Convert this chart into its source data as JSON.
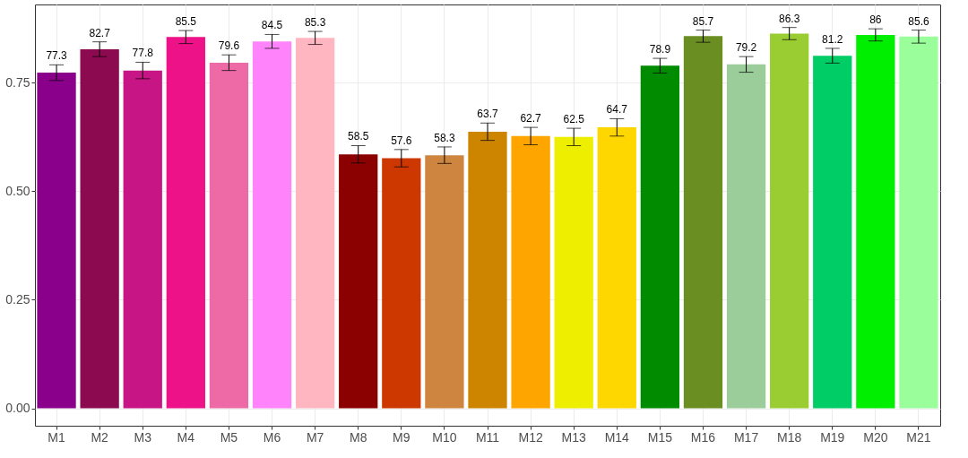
{
  "chart_data": {
    "type": "bar",
    "categories": [
      "M1",
      "M2",
      "M3",
      "M4",
      "M5",
      "M6",
      "M7",
      "M8",
      "M9",
      "M10",
      "M11",
      "M12",
      "M13",
      "M14",
      "M15",
      "M16",
      "M17",
      "M18",
      "M19",
      "M20",
      "M21"
    ],
    "values": [
      0.773,
      0.827,
      0.778,
      0.855,
      0.796,
      0.845,
      0.853,
      0.585,
      0.576,
      0.583,
      0.637,
      0.627,
      0.625,
      0.647,
      0.789,
      0.857,
      0.792,
      0.863,
      0.812,
      0.86,
      0.856
    ],
    "errors": [
      0.018,
      0.017,
      0.019,
      0.015,
      0.018,
      0.016,
      0.015,
      0.02,
      0.02,
      0.019,
      0.02,
      0.02,
      0.02,
      0.02,
      0.017,
      0.014,
      0.018,
      0.014,
      0.017,
      0.014,
      0.015
    ],
    "annotations": [
      {
        "text": "77.3",
        "x": "M1",
        "y": 0.791
      },
      {
        "text": "82.7",
        "x": "M2",
        "y": 0.844
      },
      {
        "text": "77.8",
        "x": "M3",
        "y": 0.797
      },
      {
        "text": "85.5",
        "x": "M4",
        "y": 0.87
      },
      {
        "text": "79.6",
        "x": "M5",
        "y": 0.814
      },
      {
        "text": "84.5",
        "x": "M6",
        "y": 0.861
      },
      {
        "text": "85.3",
        "x": "M7",
        "y": 0.868
      },
      {
        "text": "58.5",
        "x": "M8",
        "y": 0.605
      },
      {
        "text": "57.6",
        "x": "M9",
        "y": 0.596
      },
      {
        "text": "58.3",
        "x": "M10",
        "y": 0.602
      },
      {
        "text": "63.7",
        "x": "M11",
        "y": 0.657
      },
      {
        "text": "62.7",
        "x": "M12",
        "y": 0.647
      },
      {
        "text": "62.5",
        "x": "M13",
        "y": 0.645
      },
      {
        "text": "64.7",
        "x": "M14",
        "y": 0.667
      },
      {
        "text": "78.9",
        "x": "M15",
        "y": 0.806
      },
      {
        "text": "85.7",
        "x": "M16",
        "y": 0.871
      },
      {
        "text": "79.2",
        "x": "M17",
        "y": 0.81
      },
      {
        "text": "86.3",
        "x": "M18",
        "y": 0.877
      },
      {
        "text": "81.2",
        "x": "M19",
        "y": 0.829
      },
      {
        "text": "86",
        "x": "M20",
        "y": 0.874
      },
      {
        "text": "85.6",
        "x": "M21",
        "y": 0.871
      }
    ],
    "colors": [
      "#8b008b",
      "#8b0a50",
      "#c71585",
      "#ee1289",
      "#ee6aa7",
      "#ff83fa",
      "#ffb6c1",
      "#8b0000",
      "#cd3700",
      "#cd853f",
      "#cd8500",
      "#ffa500",
      "#eeee00",
      "#ffd700",
      "#008b00",
      "#6b8e23",
      "#9bcd9b",
      "#9acd32",
      "#00cd66",
      "#00ee00",
      "#9aff9a"
    ],
    "ylim": [
      -0.04,
      0.93
    ],
    "yticks": [
      {
        "value": 0,
        "label": "0.00"
      },
      {
        "value": 0.25,
        "label": "0.25"
      },
      {
        "value": 0.5,
        "label": "0.50"
      },
      {
        "value": 0.75,
        "label": "0.75"
      }
    ],
    "grid": true
  }
}
